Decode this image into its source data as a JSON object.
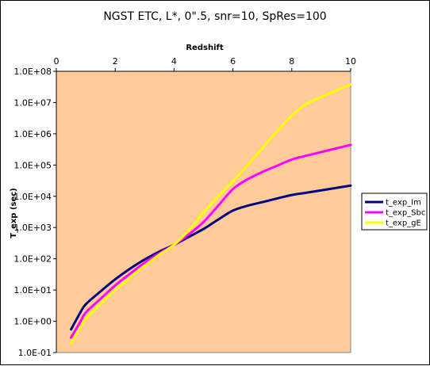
{
  "chart_data": {
    "type": "line",
    "title": "NGST ETC, L*, 0\".5, snr=10, SpRes=100",
    "xlabel": "Redshift",
    "ylabel": "T_exp (sec)",
    "xlim": [
      0,
      10
    ],
    "ylim": [
      0.1,
      100000000
    ],
    "y_scale": "log",
    "x_ticks": [
      "0",
      "2",
      "4",
      "6",
      "8",
      "10"
    ],
    "y_ticks": [
      "1.0E-01",
      "1.0E+00",
      "1.0E+01",
      "1.0E+02",
      "1.0E+03",
      "1.0E+04",
      "1.0E+05",
      "1.0E+06",
      "1.0E+07",
      "1.0E+08"
    ],
    "x_axis_position": "top",
    "grid": false,
    "legend_position": "right",
    "plot_background": "#FFCC99",
    "series": [
      {
        "name": "t_exp_Im",
        "color": "#000080",
        "x": [
          0.5,
          0.8,
          1.0,
          1.5,
          2.0,
          2.5,
          3.0,
          3.5,
          4.0,
          4.5,
          5.0,
          5.5,
          6.0,
          6.5,
          7.0,
          7.5,
          8.0,
          8.5,
          9.0,
          9.5,
          10.0
        ],
        "y": [
          0.55,
          1.8,
          3.5,
          9,
          22,
          48,
          95,
          170,
          280,
          500,
          900,
          1800,
          3500,
          5000,
          6500,
          8500,
          11000,
          13000,
          15500,
          18500,
          22000
        ]
      },
      {
        "name": "t_exp_Sbc",
        "color": "#FF00FF",
        "x": [
          0.5,
          0.8,
          1.0,
          1.5,
          2.0,
          2.5,
          3.0,
          3.5,
          4.0,
          4.5,
          5.0,
          5.5,
          6.0,
          6.5,
          7.0,
          7.5,
          8.0,
          8.5,
          9.0,
          9.5,
          10.0
        ],
        "y": [
          0.3,
          0.9,
          1.9,
          5.2,
          14,
          33,
          75,
          150,
          280,
          600,
          1500,
          5000,
          17000,
          35000,
          60000,
          95000,
          150000,
          200000,
          260000,
          340000,
          440000
        ]
      },
      {
        "name": "t_exp_gE",
        "color": "#FFFF00",
        "x": [
          0.5,
          0.8,
          1.0,
          1.5,
          2.0,
          2.5,
          3.0,
          3.5,
          4.0,
          4.5,
          5.0,
          5.5,
          6.0,
          6.5,
          7.0,
          7.5,
          8.0,
          8.5,
          9.0,
          9.5,
          10.0
        ],
        "y": [
          0.2,
          0.6,
          1.2,
          3.6,
          10,
          25,
          60,
          135,
          280,
          800,
          3000,
          10000,
          30000,
          100000,
          350000,
          1200000,
          3800000,
          9000000,
          15000000,
          24000000,
          38000000
        ]
      }
    ]
  }
}
